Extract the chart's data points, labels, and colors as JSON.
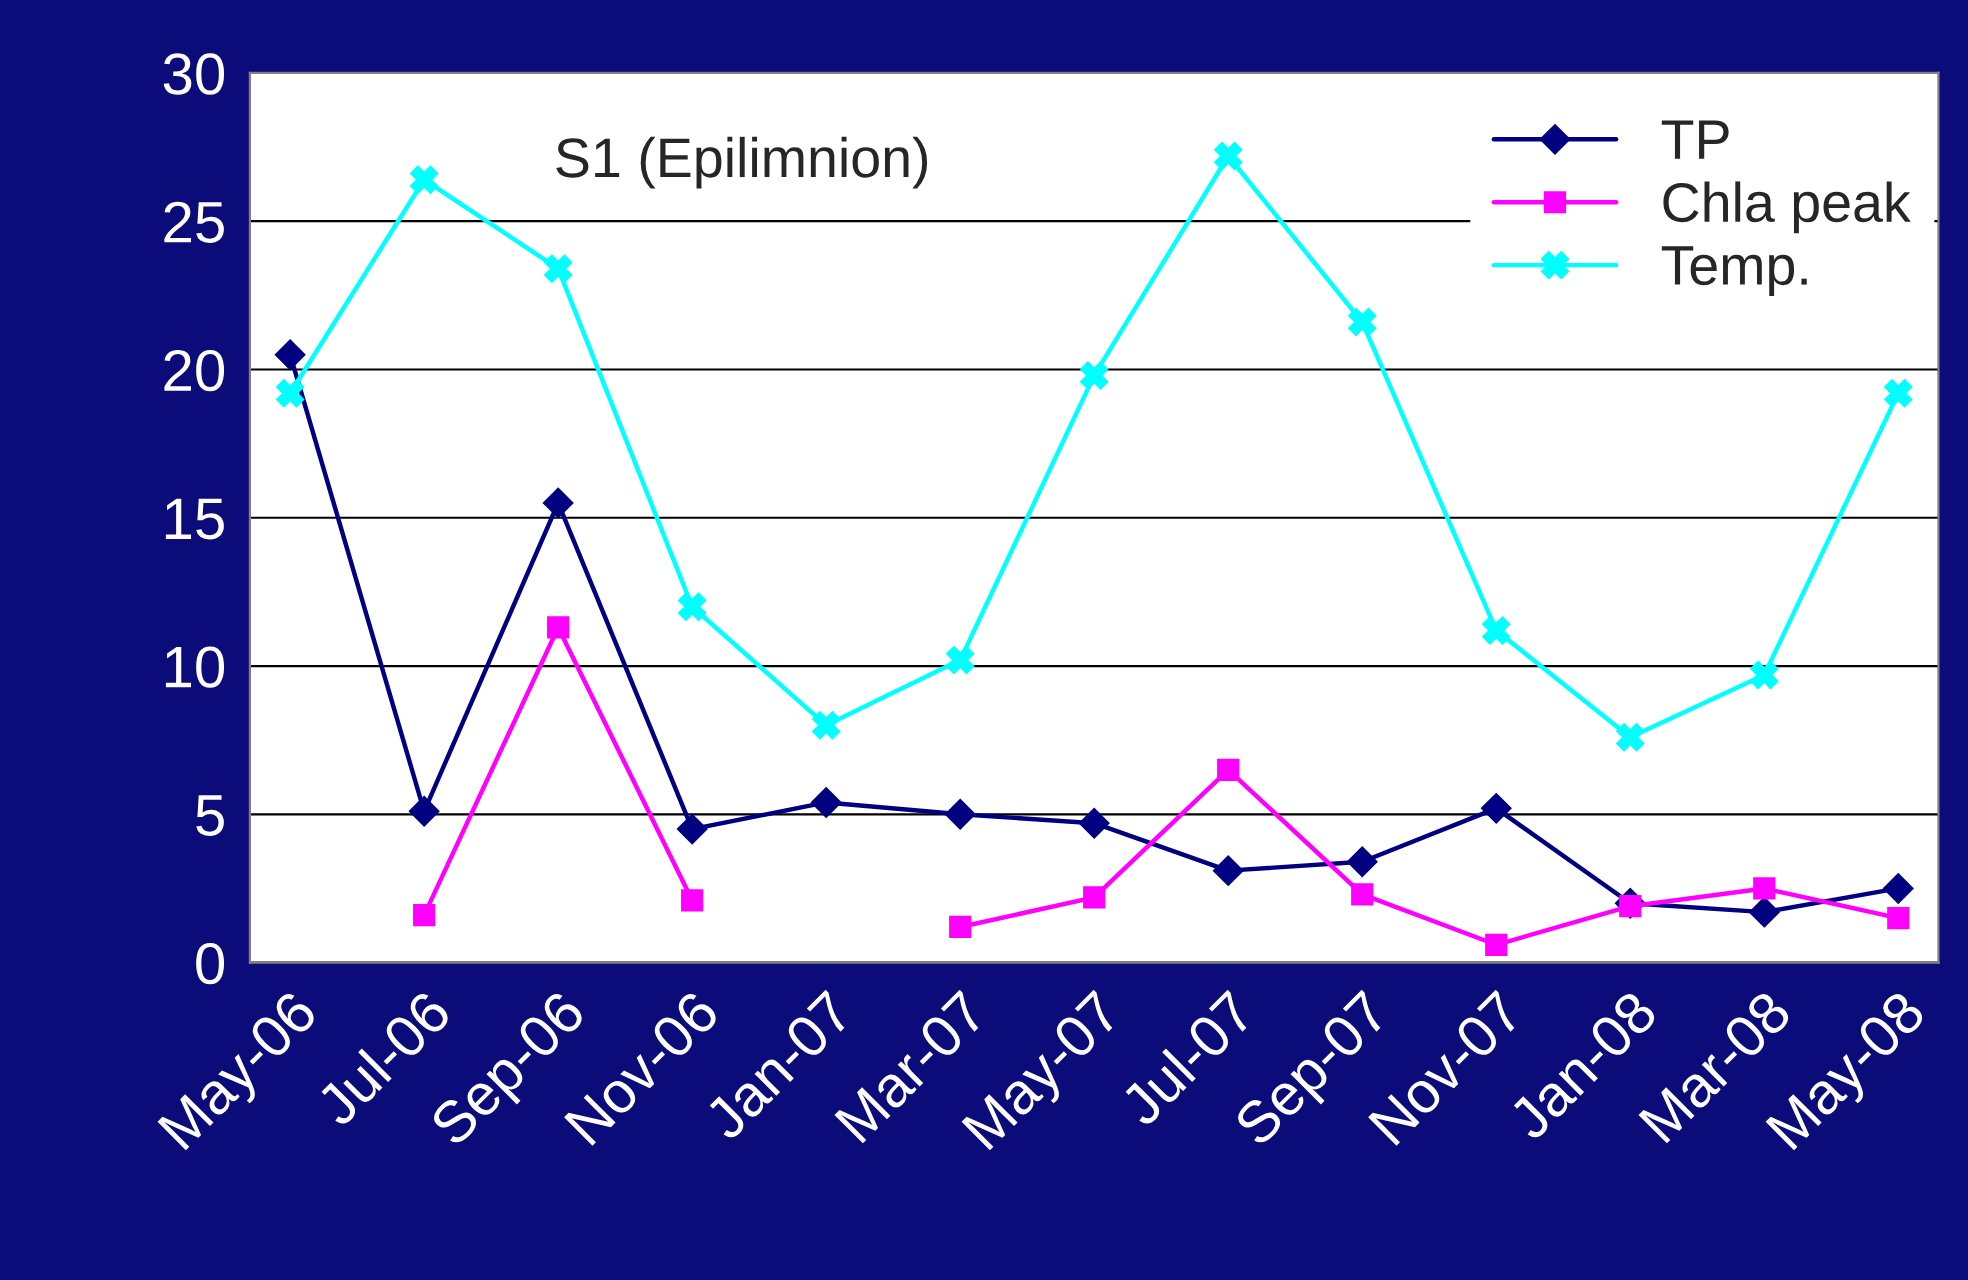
{
  "chart_data": {
    "type": "line",
    "categories": [
      "May-06",
      "Jul-06",
      "Sep-06",
      "Nov-06",
      "Jan-07",
      "Mar-07",
      "May-07",
      "Jul-07",
      "Sep-07",
      "Nov-07",
      "Jan-08",
      "Mar-08",
      "May-08"
    ],
    "series": [
      {
        "name": "TP",
        "color": "#000080",
        "marker": "diamond",
        "values": [
          20.5,
          5.1,
          15.5,
          4.5,
          5.4,
          5.0,
          4.7,
          3.1,
          3.4,
          5.2,
          2.0,
          1.7,
          2.5
        ]
      },
      {
        "name": "Chla peak",
        "color": "#ff00ff",
        "marker": "square",
        "values": [
          null,
          1.6,
          11.3,
          2.1,
          null,
          1.2,
          2.2,
          6.5,
          2.3,
          0.6,
          1.9,
          2.5,
          1.5
        ]
      },
      {
        "name": "Temp.",
        "color": "#00ffff",
        "marker": "cross",
        "values": [
          19.2,
          26.4,
          23.4,
          12.0,
          8.0,
          10.2,
          19.8,
          27.2,
          21.6,
          11.2,
          7.6,
          9.7,
          19.2
        ]
      }
    ],
    "annotations": [
      "S1 (Epilimnion)"
    ],
    "ylim": [
      0,
      30
    ],
    "yticks": [
      0,
      5,
      10,
      15,
      20,
      25,
      30
    ],
    "grid": "y",
    "legend": "top right",
    "line_style": "solid"
  }
}
